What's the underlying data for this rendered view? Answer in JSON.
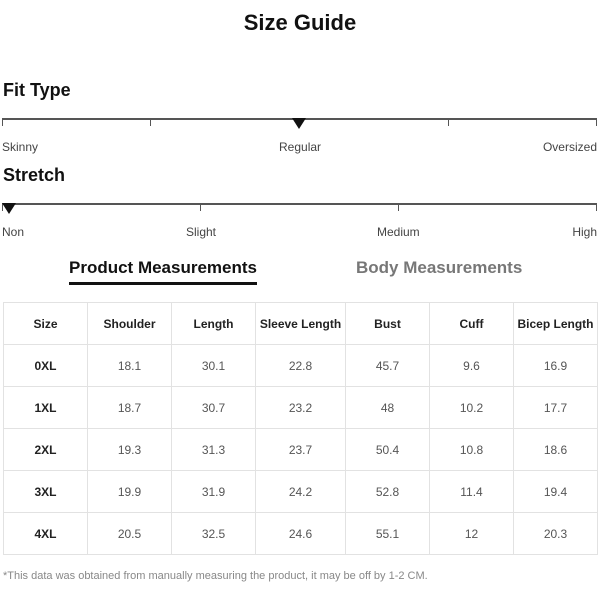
{
  "title": "Size Guide",
  "fit_type": {
    "label": "Fit Type",
    "options": [
      "Skinny",
      "Regular",
      "Oversized"
    ],
    "selected": "Regular"
  },
  "stretch": {
    "label": "Stretch",
    "options": [
      "Non",
      "Slight",
      "Medium",
      "High"
    ],
    "selected": "Non"
  },
  "tabs": [
    {
      "label": "Product Measurements",
      "active": true
    },
    {
      "label": "Body Measurements",
      "active": false
    }
  ],
  "table": {
    "headers": [
      "Size",
      "Shoulder",
      "Length",
      "Sleeve Length",
      "Bust",
      "Cuff",
      "Bicep Length"
    ],
    "rows": [
      [
        "0XL",
        "18.1",
        "30.1",
        "22.8",
        "45.7",
        "9.6",
        "16.9"
      ],
      [
        "1XL",
        "18.7",
        "30.7",
        "23.2",
        "48",
        "10.2",
        "17.7"
      ],
      [
        "2XL",
        "19.3",
        "31.3",
        "23.7",
        "50.4",
        "10.8",
        "18.6"
      ],
      [
        "3XL",
        "19.9",
        "31.9",
        "24.2",
        "52.8",
        "11.4",
        "19.4"
      ],
      [
        "4XL",
        "20.5",
        "32.5",
        "24.6",
        "55.1",
        "12",
        "20.3"
      ]
    ]
  },
  "note": "*This data was obtained from manually measuring the product, it may be off by 1-2 CM."
}
